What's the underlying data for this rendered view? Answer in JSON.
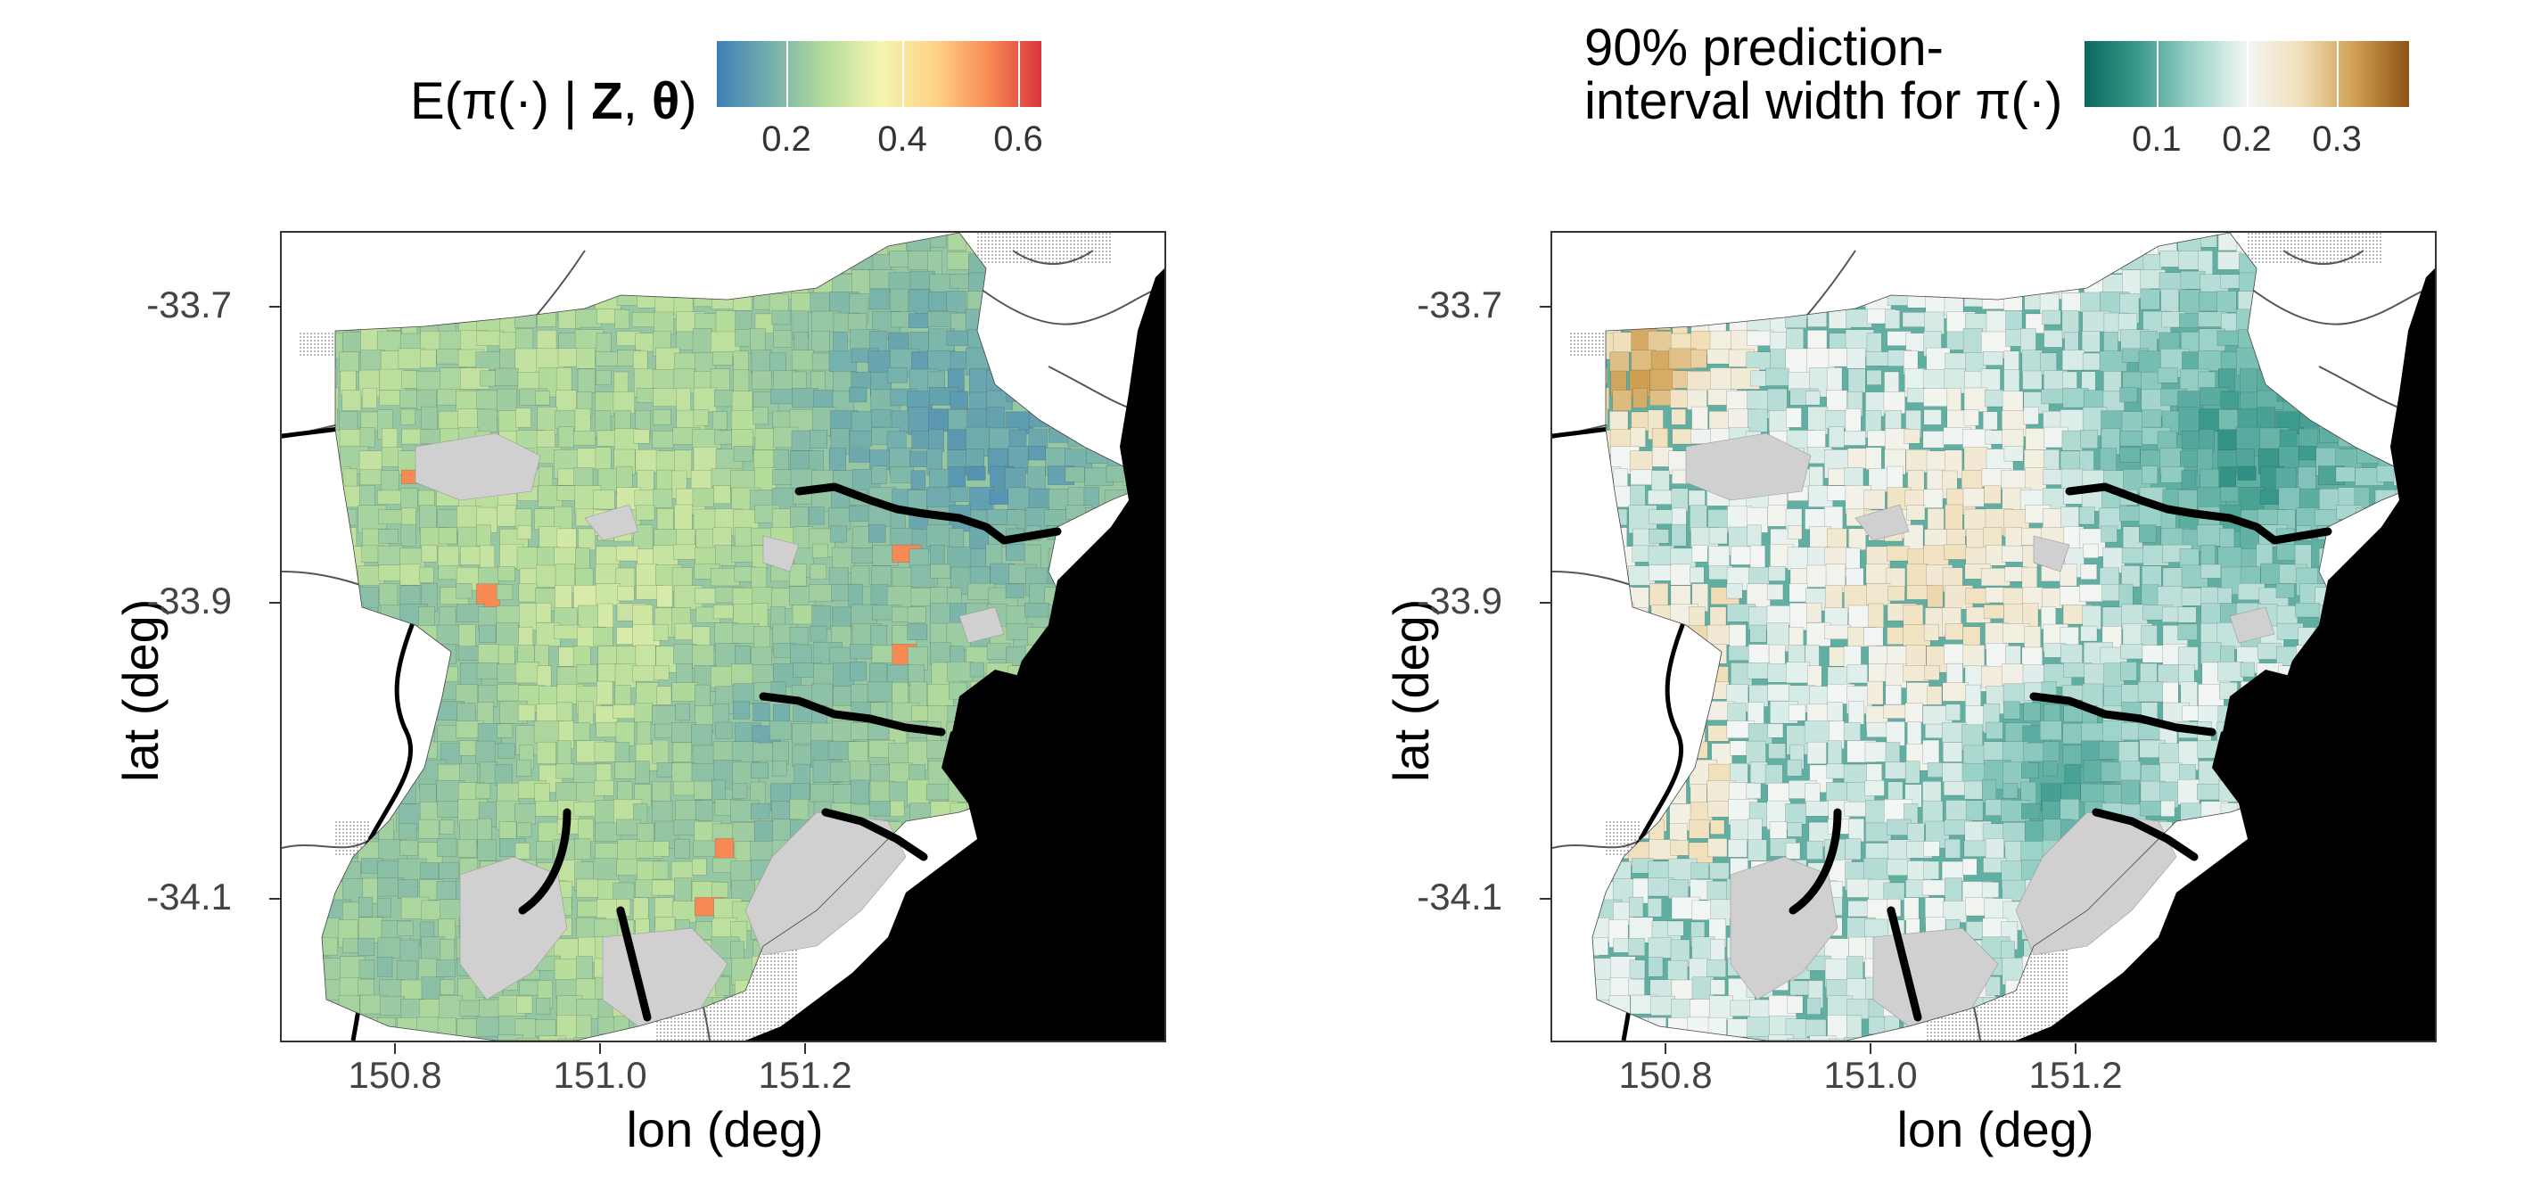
{
  "left": {
    "legend_title_prefix": "E(π(·) | ",
    "legend_title_Z": "Z",
    "legend_title_comma": ", ",
    "legend_title_theta": "θ",
    "legend_title_suffix": ")",
    "colorbar": {
      "palette": "Spectral (reversed)",
      "colors": [
        "#3f7fb6",
        "#74b0ad",
        "#b4dc9b",
        "#f3f5b0",
        "#fed589",
        "#f88d55",
        "#d8343c"
      ],
      "min": 0.08,
      "max": 0.64,
      "ticks": [
        "0.2",
        "0.4",
        "0.6"
      ],
      "tick_values": [
        0.2,
        0.4,
        0.6
      ]
    },
    "xlabel": "lon (deg)",
    "ylabel": "lat (deg)",
    "x_ticks": [
      "150.8",
      "151.0",
      "151.2"
    ],
    "y_ticks": [
      "-33.7",
      "-33.9",
      "-34.1"
    ]
  },
  "right": {
    "legend_title_line1": "90% prediction-",
    "legend_title_line2": "interval width for π(·)",
    "colorbar": {
      "palette": "BrBG (reversed)",
      "colors": [
        "#0b6a60",
        "#3a9a8c",
        "#9bd2c8",
        "#f2f6f4",
        "#f1dfb9",
        "#cf9f52",
        "#8c5212"
      ],
      "min": 0.02,
      "max": 0.38,
      "ticks": [
        "0.1",
        "0.2",
        "0.3"
      ],
      "tick_values": [
        0.1,
        0.2,
        0.3
      ]
    },
    "xlabel": "lon (deg)",
    "ylabel": "lat (deg)",
    "x_ticks": [
      "150.8",
      "151.0",
      "151.2"
    ],
    "y_ticks": [
      "-33.7",
      "-33.9",
      "-34.1"
    ]
  },
  "map_extent": {
    "lon": [
      150.72,
      151.32
    ],
    "lat": [
      -34.2,
      -33.65
    ]
  },
  "map_colors": {
    "ocean": "#000000",
    "no_data_region": "#d0d0d0",
    "outside": "#ffffff",
    "roads": "#555555"
  }
}
